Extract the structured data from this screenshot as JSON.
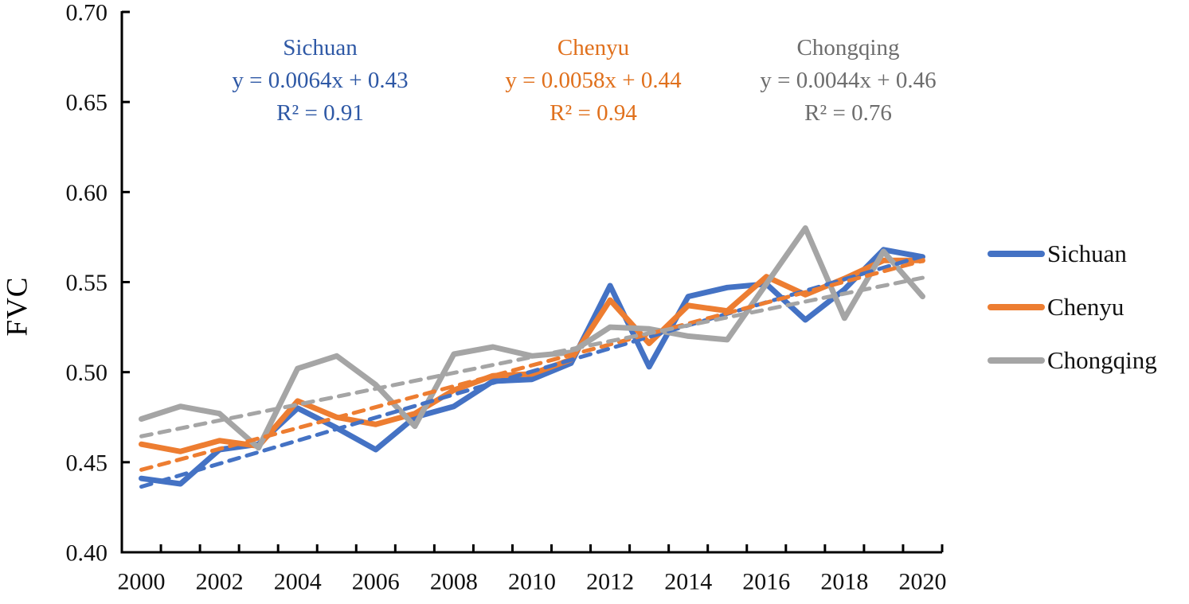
{
  "figure": {
    "background": "#ffffff",
    "y_axis_label": "FVC",
    "y_tick_labels": [
      "0.40",
      "0.45",
      "0.50",
      "0.55",
      "0.60",
      "0.65",
      "0.70"
    ],
    "x_tick_labels": [
      "2000",
      "2002",
      "2004",
      "2006",
      "2008",
      "2010",
      "2012",
      "2014",
      "2016",
      "2018",
      "2020"
    ],
    "axis_color": "#000000"
  },
  "annotations": [
    {
      "title": "Sichuan",
      "equation": "y = 0.0064x + 0.43",
      "r_squared": "R² = 0.91",
      "color": "#2e58a5"
    },
    {
      "title": "Chenyu",
      "equation": "y = 0.0058x + 0.44",
      "r_squared": "R² = 0.94",
      "color": "#e0701c"
    },
    {
      "title": "Chongqing",
      "equation": "y = 0.0044x + 0.46",
      "r_squared": "R² = 0.76",
      "color": "#6d6d6d"
    }
  ],
  "legend": {
    "items": [
      {
        "label": "Sichuan",
        "color": "#4472c4"
      },
      {
        "label": "Chenyu",
        "color": "#ed7d31"
      },
      {
        "label": "Chongqing",
        "color": "#a5a5a5"
      }
    ]
  },
  "chart_data": {
    "type": "line",
    "title": "",
    "xlabel": "",
    "ylabel": "FVC",
    "x": [
      2000,
      2001,
      2002,
      2003,
      2004,
      2005,
      2006,
      2007,
      2008,
      2009,
      2010,
      2011,
      2012,
      2013,
      2014,
      2015,
      2016,
      2017,
      2018,
      2019,
      2020
    ],
    "ylim": [
      0.4,
      0.7
    ],
    "y_tick_step": 0.05,
    "grid": false,
    "legend_position": "right",
    "series": [
      {
        "name": "Sichuan",
        "color": "#4472c4",
        "values": [
          0.441,
          0.438,
          0.457,
          0.46,
          0.48,
          0.469,
          0.457,
          0.475,
          0.481,
          0.495,
          0.496,
          0.505,
          0.548,
          0.503,
          0.542,
          0.547,
          0.549,
          0.529,
          0.546,
          0.568,
          0.564
        ]
      },
      {
        "name": "Chenyu",
        "color": "#ed7d31",
        "values": [
          0.46,
          0.456,
          0.462,
          0.459,
          0.484,
          0.475,
          0.471,
          0.477,
          0.49,
          0.498,
          0.499,
          0.507,
          0.54,
          0.516,
          0.537,
          0.534,
          0.553,
          0.543,
          0.552,
          0.562,
          0.562
        ]
      },
      {
        "name": "Chongqing",
        "color": "#a5a5a5",
        "values": [
          0.474,
          0.481,
          0.477,
          0.458,
          0.502,
          0.509,
          0.493,
          0.47,
          0.51,
          0.514,
          0.509,
          0.511,
          0.525,
          0.524,
          0.52,
          0.518,
          0.549,
          0.58,
          0.53,
          0.567,
          0.542
        ]
      }
    ],
    "trendlines": [
      {
        "series": "Sichuan",
        "slope": 0.0064,
        "intercept": 0.43,
        "r2": 0.91,
        "color": "#4472c4"
      },
      {
        "series": "Chenyu",
        "slope": 0.0058,
        "intercept": 0.44,
        "r2": 0.94,
        "color": "#ed7d31"
      },
      {
        "series": "Chongqing",
        "slope": 0.0044,
        "intercept": 0.46,
        "r2": 0.76,
        "color": "#a5a5a5"
      }
    ]
  }
}
